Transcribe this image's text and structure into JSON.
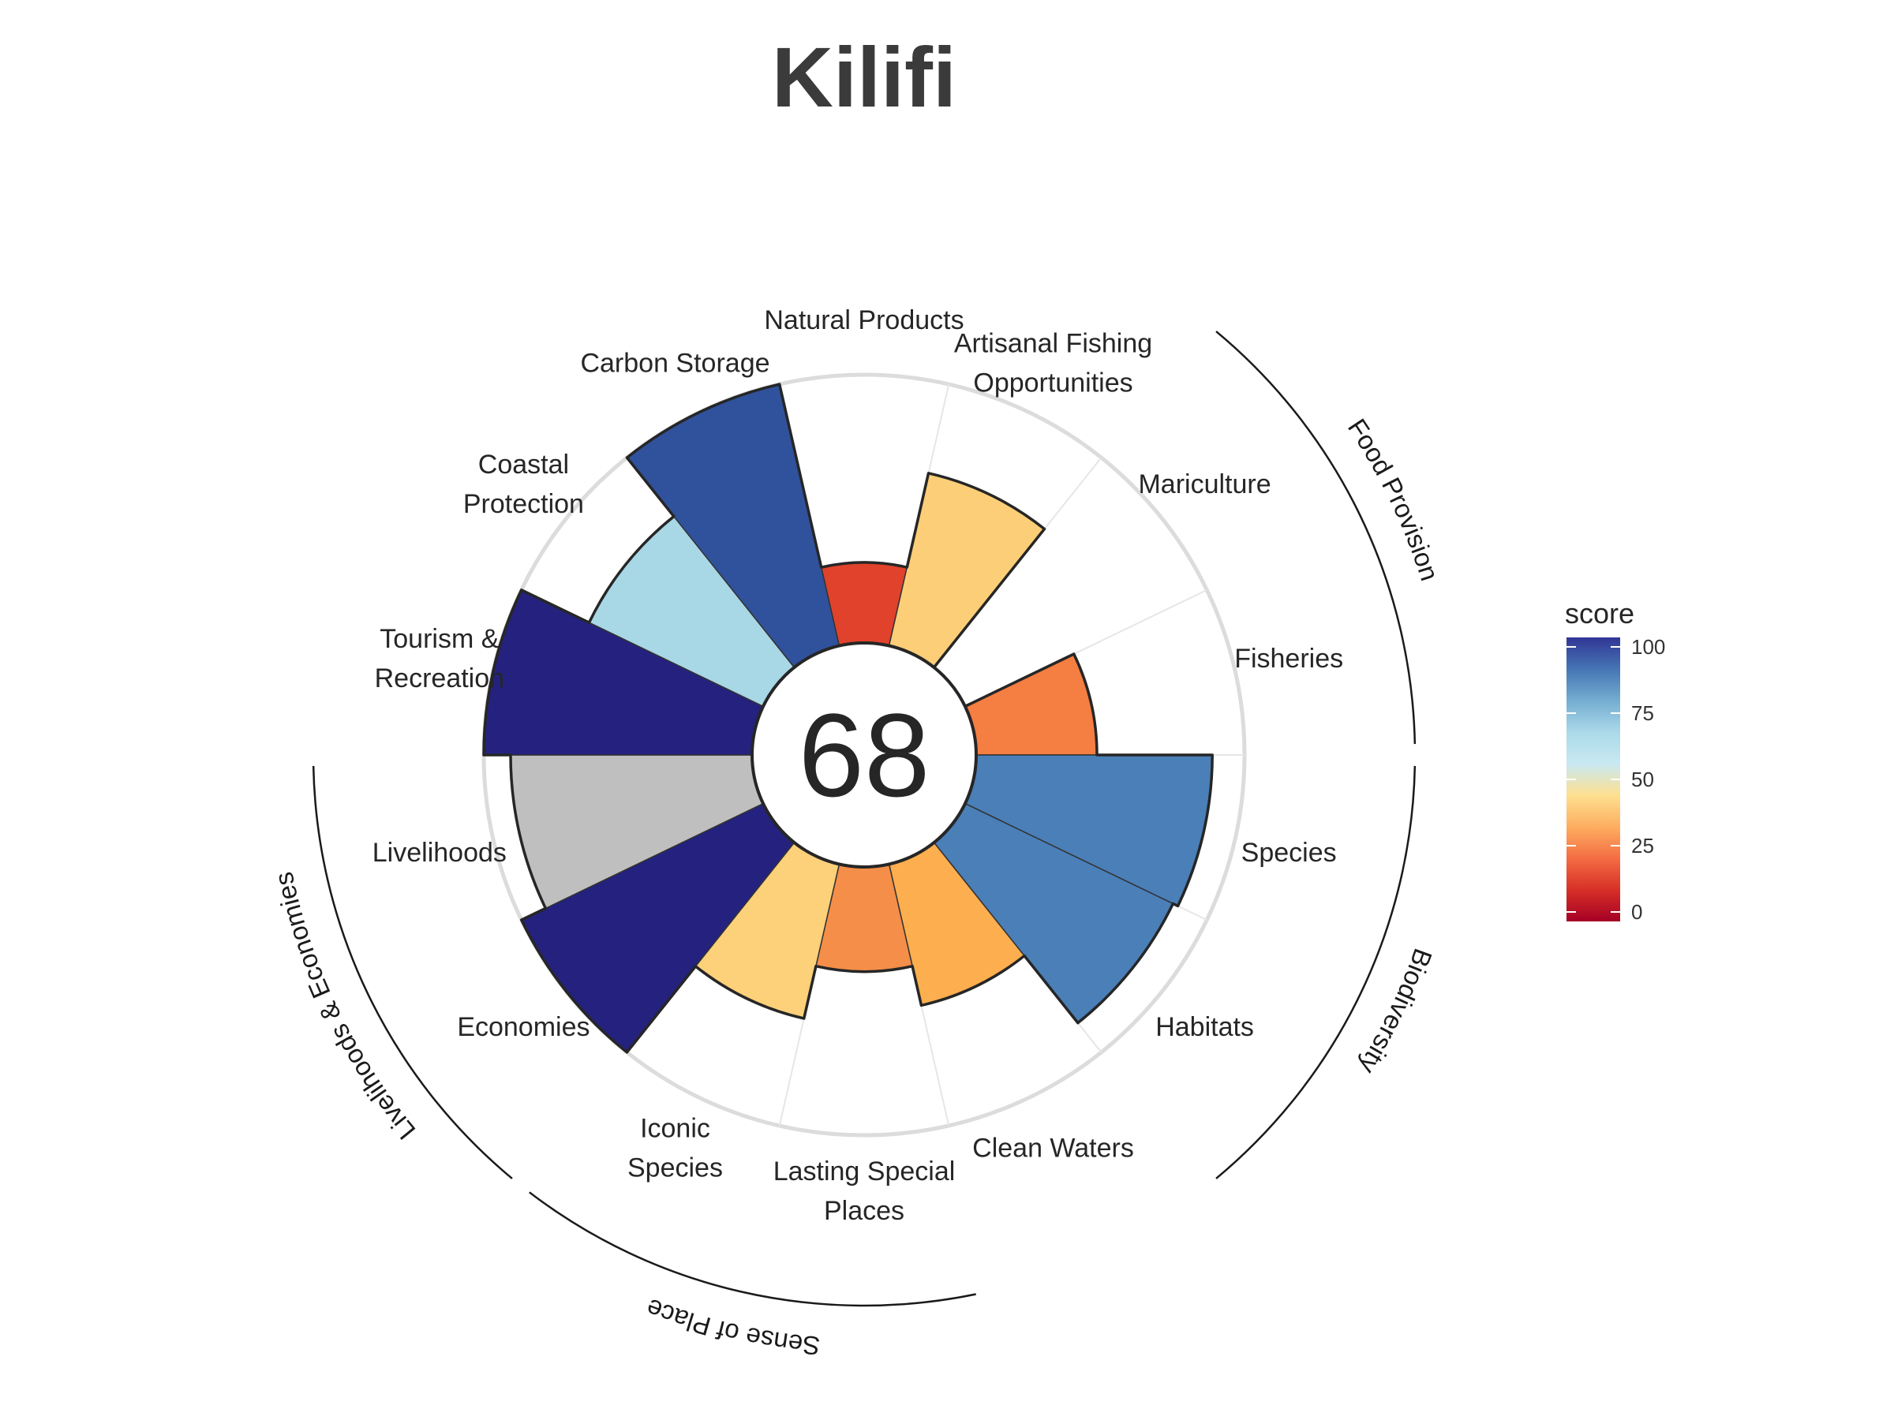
{
  "chart_data": {
    "type": "polar-bar",
    "title": "Kilifi",
    "center_score": "68",
    "rlim": [
      0,
      100
    ],
    "missing_color": "#bdbdbd",
    "goals": [
      {
        "name": "Natural Products",
        "lines": [
          "Natural Products"
        ],
        "value": 30,
        "color": "#e0422b"
      },
      {
        "name": "Artisanal Fishing Opportunities",
        "lines": [
          "Artisanal Fishing",
          "Opportunities"
        ],
        "value": 66,
        "color": "#fdce78"
      },
      {
        "name": "Mariculture",
        "lines": [
          "Mariculture"
        ],
        "value": null,
        "color": null
      },
      {
        "name": "Fisheries",
        "lines": [
          "Fisheries"
        ],
        "value": 45,
        "color": "#f57e42"
      },
      {
        "name": "Species",
        "lines": [
          "Species"
        ],
        "value": 88,
        "color": "#4a7fb8"
      },
      {
        "name": "Habitats",
        "lines": [
          "Habitats"
        ],
        "value": 86,
        "color": "#4a7fb8"
      },
      {
        "name": "Clean Waters",
        "lines": [
          "Clean Waters"
        ],
        "value": 54,
        "color": "#fdae4f"
      },
      {
        "name": "Lasting Special Places",
        "lines": [
          "Lasting Special",
          "Places"
        ],
        "value": 39,
        "color": "#f48e48"
      },
      {
        "name": "Iconic Species",
        "lines": [
          "Iconic",
          "Species"
        ],
        "value": 59,
        "color": "#fdd07a"
      },
      {
        "name": "Economies",
        "lines": [
          "Economies"
        ],
        "value": 100,
        "color": "#24227e"
      },
      {
        "name": "Livelihoods",
        "lines": [
          "Livelihoods"
        ],
        "value": 90,
        "color": "#bfbfbf"
      },
      {
        "name": "Tourism & Recreation",
        "lines": [
          "Tourism &",
          "Recreation"
        ],
        "value": 100,
        "color": "#24227e"
      },
      {
        "name": "Coastal Protection",
        "lines": [
          "Coastal",
          "Protection"
        ],
        "value": 72,
        "color": "#a8d7e6"
      },
      {
        "name": "Carbon Storage",
        "lines": [
          "Carbon Storage"
        ],
        "value": 100,
        "color": "#30529c"
      }
    ],
    "groups": [
      {
        "label": "Food Provision",
        "goals": [
          "Mariculture",
          "Fisheries"
        ]
      },
      {
        "label": "Biodiversity",
        "goals": [
          "Species",
          "Habitats"
        ]
      },
      {
        "label": "Sense of Place",
        "goals": [
          "Lasting Special Places",
          "Iconic Species"
        ]
      },
      {
        "label": "Livelihoods & Economies",
        "goals": [
          "Economies",
          "Livelihoods"
        ]
      }
    ],
    "legend": {
      "title": "score",
      "ticks": [
        "0",
        "25",
        "50",
        "75",
        "100"
      ],
      "tick_values": [
        0,
        25,
        50,
        75,
        100
      ],
      "gradient": [
        "#a50026",
        "#d73027",
        "#f46d43",
        "#fdae61",
        "#fee090",
        "#c8e9f2",
        "#abd9e9",
        "#74add1",
        "#4575b4",
        "#313695"
      ]
    }
  }
}
